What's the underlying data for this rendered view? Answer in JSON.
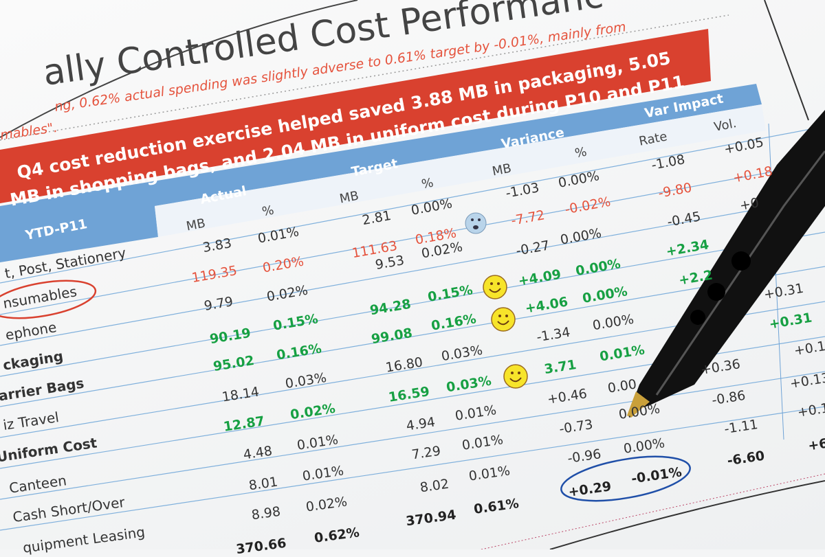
{
  "header": {
    "title": "ally Controlled Cost Performanc",
    "subtitle_line1": "ng, 0.62% actual spending was slightly adverse to 0.61% target by -0.01%, mainly from",
    "subtitle_line2": "mables\".",
    "banner_line1": "Q4 cost reduction exercise helped saved 3.88 MB in packaging, 5.05",
    "banner_line2": "MB in shopping bags, and 2.04 MB in uniform cost during P10 and P11"
  },
  "table": {
    "corner": "YTD-P11",
    "groups": [
      "Actual",
      "Target",
      "Variance",
      "Var Impact"
    ],
    "subheaders": [
      "MB",
      "%",
      "MB",
      "%",
      "MB",
      "%",
      "Rate",
      "Vol."
    ],
    "row_labels": [
      {
        "text": "t, Post, Stationery",
        "style": "k"
      },
      {
        "text": "nsumables",
        "style": "r"
      },
      {
        "text": "ephone",
        "style": "k"
      },
      {
        "text": "ckaging",
        "style": "g"
      },
      {
        "text": "arrier Bags",
        "style": "g"
      },
      {
        "text": "iz Travel",
        "style": "k"
      },
      {
        "text": "Uniform Cost",
        "style": "g"
      },
      {
        "text": "Canteen",
        "style": "k"
      },
      {
        "text": "Cash Short/Over",
        "style": "k"
      },
      {
        "text": "quipment Leasing",
        "style": "k"
      }
    ],
    "cells": [
      {
        "text": "3.83",
        "style": "k"
      },
      {
        "text": "0.01%",
        "style": "k"
      },
      {
        "text": "2.81",
        "style": "k"
      },
      {
        "text": "0.00%",
        "style": "k"
      },
      {
        "text": "-1.03",
        "style": "k"
      },
      {
        "text": "0.00%",
        "style": "k"
      },
      {
        "text": "-1.08",
        "style": "k"
      },
      {
        "text": "+0.05",
        "style": "k"
      },
      {
        "text": "119.35",
        "style": "r"
      },
      {
        "text": "0.20%",
        "style": "r"
      },
      {
        "text": "111.63",
        "style": "r"
      },
      {
        "text": "0.18%",
        "style": "r"
      },
      {
        "text": "-7.72",
        "style": "r"
      },
      {
        "text": "-0.02%",
        "style": "r"
      },
      {
        "text": "-9.80",
        "style": "r"
      },
      {
        "text": "+0.18",
        "style": "r"
      },
      {
        "text": "9.79",
        "style": "k"
      },
      {
        "text": "0.02%",
        "style": "k"
      },
      {
        "text": "9.53",
        "style": "k"
      },
      {
        "text": "0.02%",
        "style": "k"
      },
      {
        "text": "-0.27",
        "style": "k"
      },
      {
        "text": "0.00%",
        "style": "k"
      },
      {
        "text": "-0.45",
        "style": "k"
      },
      {
        "text": "+0",
        "style": "k"
      },
      {
        "text": "90.19",
        "style": "g"
      },
      {
        "text": "0.15%",
        "style": "g"
      },
      {
        "text": "94.28",
        "style": "g"
      },
      {
        "text": "0.15%",
        "style": "g"
      },
      {
        "text": "+4.09",
        "style": "g"
      },
      {
        "text": "0.00%",
        "style": "g"
      },
      {
        "text": "+2.34",
        "style": "g"
      },
      {
        "text": "95.02",
        "style": "g"
      },
      {
        "text": "0.16%",
        "style": "g"
      },
      {
        "text": "99.08",
        "style": "g"
      },
      {
        "text": "0.16%",
        "style": "g"
      },
      {
        "text": "+4.06",
        "style": "g"
      },
      {
        "text": "0.00%",
        "style": "g"
      },
      {
        "text": "+2.2",
        "style": "g"
      },
      {
        "text": "+0.31",
        "style": "k"
      },
      {
        "text": "18.14",
        "style": "k"
      },
      {
        "text": "0.03%",
        "style": "k"
      },
      {
        "text": "16.80",
        "style": "k"
      },
      {
        "text": "0.03%",
        "style": "k"
      },
      {
        "text": "-1.34",
        "style": "k"
      },
      {
        "text": "0.00%",
        "style": "k"
      },
      {
        "text": "+0.31",
        "style": "g"
      },
      {
        "text": "12.87",
        "style": "g"
      },
      {
        "text": "0.02%",
        "style": "g"
      },
      {
        "text": "16.59",
        "style": "g"
      },
      {
        "text": "0.03%",
        "style": "g"
      },
      {
        "text": "3.71",
        "style": "g"
      },
      {
        "text": "0.01%",
        "style": "g"
      },
      {
        "text": "+0.36",
        "style": "k"
      },
      {
        "text": "+0.1",
        "style": "k"
      },
      {
        "text": "4.48",
        "style": "k"
      },
      {
        "text": "0.01%",
        "style": "k"
      },
      {
        "text": "4.94",
        "style": "k"
      },
      {
        "text": "0.01%",
        "style": "k"
      },
      {
        "text": "+0.46",
        "style": "k"
      },
      {
        "text": "0.00",
        "style": "k"
      },
      {
        "text": "-0.86",
        "style": "k"
      },
      {
        "text": "+0.13",
        "style": "k"
      },
      {
        "text": "8.01",
        "style": "k"
      },
      {
        "text": "0.01%",
        "style": "k"
      },
      {
        "text": "7.29",
        "style": "k"
      },
      {
        "text": "0.01%",
        "style": "k"
      },
      {
        "text": "-0.73",
        "style": "k"
      },
      {
        "text": "0.00%",
        "style": "k"
      },
      {
        "text": "-1.11",
        "style": "k"
      },
      {
        "text": "+0.1",
        "style": "k"
      },
      {
        "text": "8.98",
        "style": "k"
      },
      {
        "text": "0.02%",
        "style": "k"
      },
      {
        "text": "8.02",
        "style": "k"
      },
      {
        "text": "0.01%",
        "style": "k"
      },
      {
        "text": "-0.96",
        "style": "k"
      },
      {
        "text": "0.00%",
        "style": "k"
      },
      {
        "text": "-6.60",
        "style": "b"
      },
      {
        "text": "+6",
        "style": "b"
      },
      {
        "text": "370.66",
        "style": "b"
      },
      {
        "text": "0.62%",
        "style": "b"
      },
      {
        "text": "370.94",
        "style": "b"
      },
      {
        "text": "0.61%",
        "style": "b"
      },
      {
        "text": "+0.29",
        "style": "b"
      },
      {
        "text": "-0.01%",
        "style": "b"
      }
    ]
  },
  "icons": {
    "sad": "sad-face-icon",
    "happy": "smiley-face-icon"
  },
  "colors": {
    "green": "#17a043",
    "red": "#e5533d",
    "banner": "#d9412f",
    "header_blue": "#6fa3d6",
    "circle_blue": "#1f4fa8"
  }
}
